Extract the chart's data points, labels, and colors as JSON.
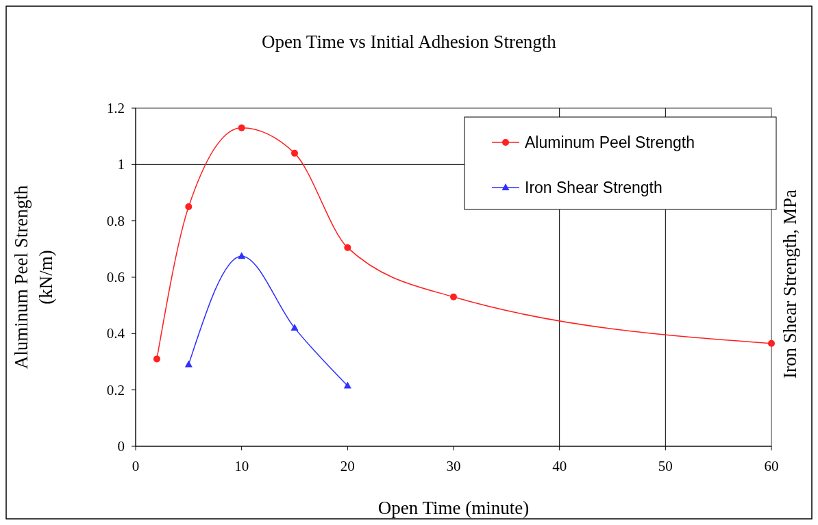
{
  "chart_data": {
    "type": "line",
    "title": "Open Time vs Initial Adhesion Strength",
    "xlabel": "Open Time (minute)",
    "ylabel": "Aluminum Peel Strength\n(kN/m)",
    "y2label": "Iron Shear Strength, MPa",
    "xlim": [
      0,
      60
    ],
    "xticks": [
      0,
      10,
      20,
      30,
      40,
      50,
      60
    ],
    "ylim": [
      0,
      1.2
    ],
    "yticks": [
      0,
      0.2,
      0.4,
      0.6,
      0.8,
      1,
      1.2
    ],
    "legend": "top right",
    "ref_lines": [
      {
        "axis": "y",
        "value": 1,
        "color": "#000000"
      },
      {
        "axis": "x",
        "value": 40,
        "color": "#000000"
      },
      {
        "axis": "x",
        "value": 50,
        "color": "#000000"
      }
    ],
    "series": [
      {
        "name": "Aluminum Peel Strength",
        "color": "#ff2020",
        "marker": "circle",
        "x": [
          2,
          5,
          10,
          15,
          20,
          30,
          60
        ],
        "values": [
          0.31,
          0.85,
          1.13,
          1.04,
          0.705,
          0.53,
          0.365
        ]
      },
      {
        "name": "Iron Shear Strength",
        "color": "#3030ff",
        "marker": "triangle",
        "x": [
          5,
          10,
          15,
          20
        ],
        "values": [
          0.29,
          0.675,
          0.42,
          0.215
        ]
      }
    ]
  }
}
